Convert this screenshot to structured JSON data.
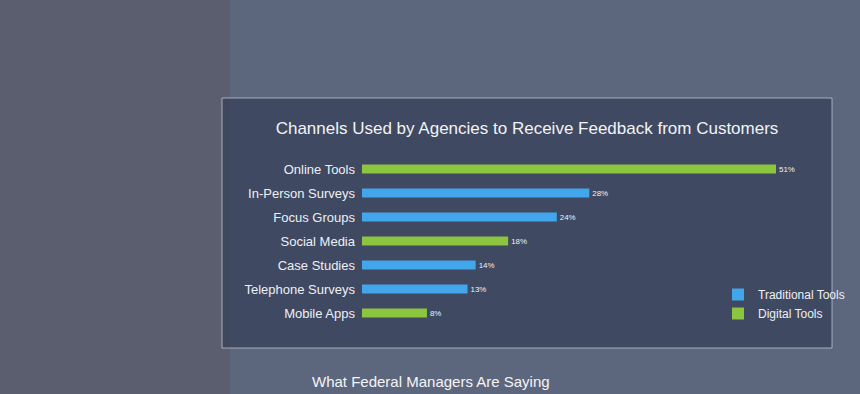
{
  "chart_data": {
    "type": "bar",
    "orientation": "horizontal",
    "title": "Channels Used by Agencies to Receive Feedback from Customers",
    "categories": [
      "Online Tools",
      "In-Person Surveys",
      "Focus Groups",
      "Social Media",
      "Case Studies",
      "Telephone Surveys",
      "Mobile Apps"
    ],
    "series": [
      {
        "name": "Traditional Tools",
        "color": "#42a6ec",
        "values": [
          null,
          28,
          24,
          null,
          14,
          13,
          null
        ],
        "value_labels": [
          null,
          "28%",
          "24%",
          null,
          "14%",
          "13%",
          null
        ]
      },
      {
        "name": "Digital Tools",
        "color": "#8cc63f",
        "values": [
          51,
          null,
          null,
          18,
          null,
          null,
          8
        ],
        "value_labels": [
          "51%",
          null,
          null,
          "18%",
          null,
          null,
          "8%"
        ]
      }
    ],
    "xlim": [
      0,
      51
    ],
    "data_labels": true,
    "tick_labels": "y",
    "legend": "bottom right",
    "annotations": [
      "What Federal Managers Are Saying"
    ]
  }
}
